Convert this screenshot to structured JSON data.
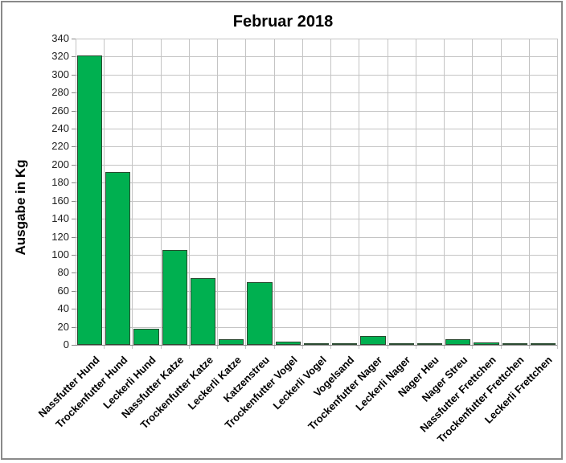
{
  "chart_data": {
    "type": "bar",
    "title": "Februar 2018",
    "xlabel": "",
    "ylabel": "Ausgabe in Kg",
    "ylim": [
      0,
      340
    ],
    "yticks": [
      0,
      20,
      40,
      60,
      80,
      100,
      120,
      140,
      160,
      180,
      200,
      220,
      240,
      260,
      280,
      300,
      320,
      340
    ],
    "grid": true,
    "legend": "none",
    "bar_color": "#00b050",
    "categories": [
      "Nassfutter Hund",
      "Trockenfutter Hund",
      "Leckerli Hund",
      "Nassfutter Katze",
      "Trockenfutter Katze",
      "Leckerli Katze",
      "Katzenstreu",
      "Trockenfutter Vogel",
      "Leckerli Vogel",
      "Vogelsand",
      "Trockenfutter Nager",
      "Leckerli Nager",
      "Nager Heu",
      "Nager Streu",
      "Nassfutter Frettchen",
      "Trockenfutter Frettchen",
      "Leckerli Frettchen"
    ],
    "values": [
      321,
      192,
      18,
      105,
      74,
      6,
      70,
      4,
      0.5,
      2,
      10,
      1,
      0,
      6,
      3,
      0,
      0.5
    ]
  }
}
